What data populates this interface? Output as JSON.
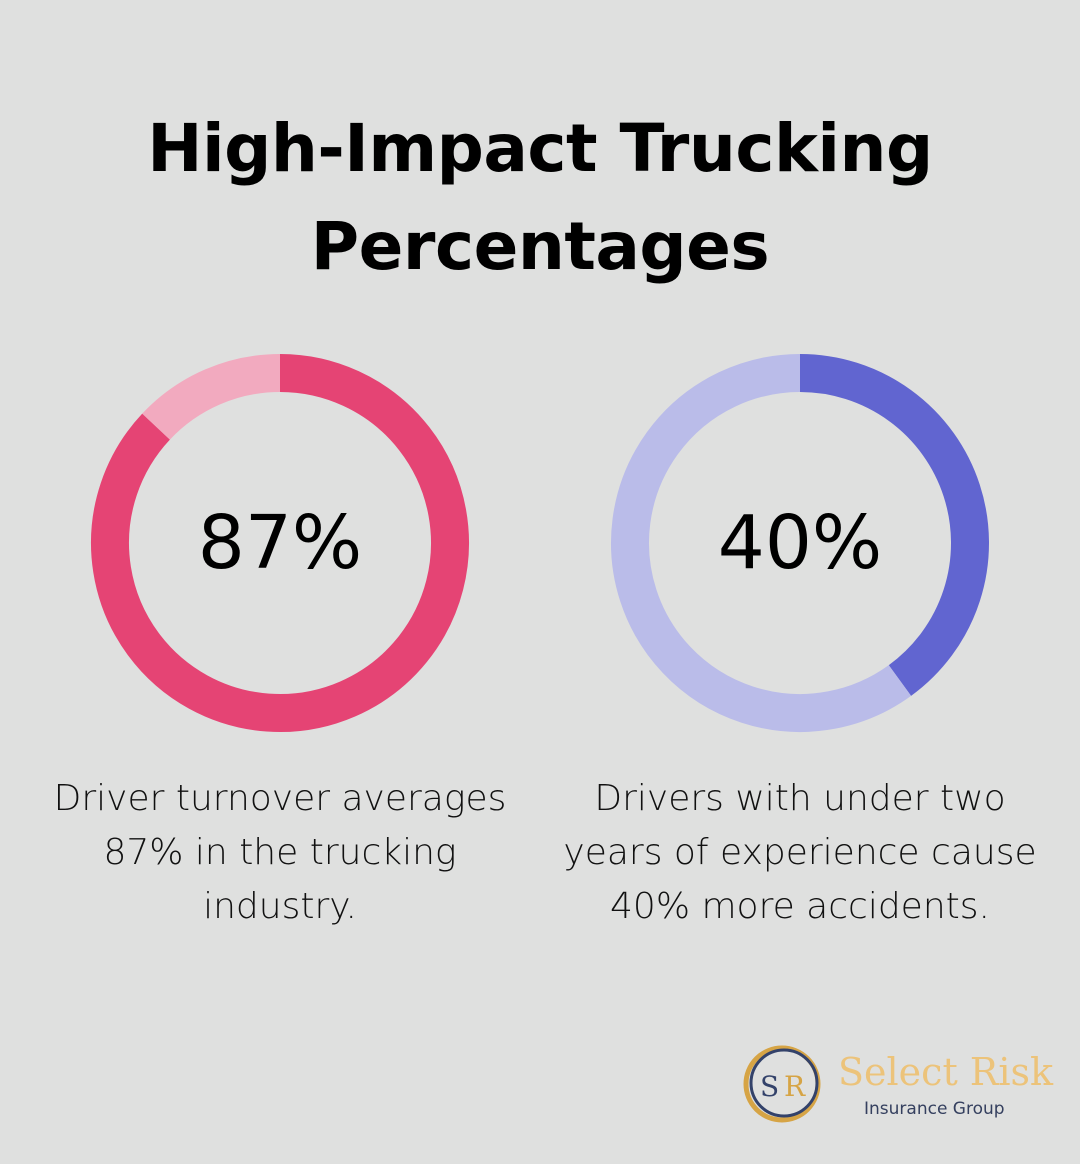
{
  "title_lines": [
    "High-Impact Trucking",
    "Percentages"
  ],
  "chart_data": [
    {
      "type": "pie",
      "variant": "donut",
      "values": [
        87,
        13
      ],
      "center_label": "87%",
      "colors": {
        "value": "#e54474",
        "remainder": "#f2aabf"
      },
      "caption": "Driver turnover averages 87% in the trucking industry."
    },
    {
      "type": "pie",
      "variant": "donut",
      "values": [
        40,
        60
      ],
      "center_label": "40%",
      "colors": {
        "value": "#6165d0",
        "remainder": "#babce9"
      },
      "caption": "Drivers with under two years of experience cause 40% more accidents."
    }
  ],
  "logo": {
    "monogram": "SR",
    "name": "Select Risk",
    "tagline": "Insurance Group"
  }
}
